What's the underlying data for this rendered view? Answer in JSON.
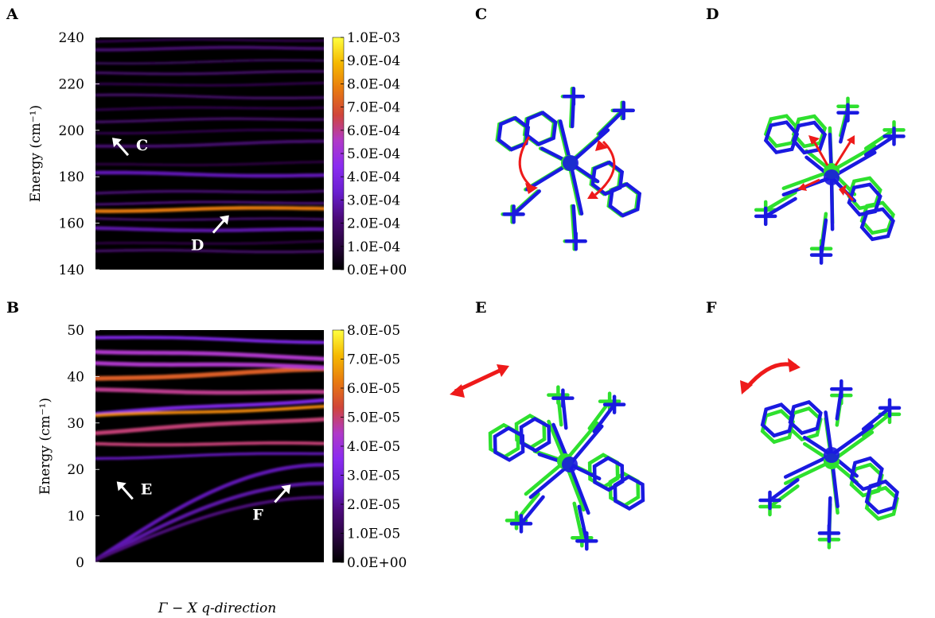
{
  "panel_labels": [
    "A",
    "B",
    "C",
    "D",
    "E",
    "F"
  ],
  "shared_xlabel": "Γ − X q-direction",
  "colormap": [
    "#000000",
    "#2a0540",
    "#4c0a7a",
    "#6a1fd0",
    "#8a2cf0",
    "#b03ac8",
    "#d0453a",
    "#e87a10",
    "#f5b800",
    "#ffff40"
  ],
  "chart_data": [
    {
      "type": "heatmap",
      "panel": "A",
      "ylabel": "Energy (cm⁻¹)",
      "ylim": [
        140,
        240
      ],
      "yticks": [
        "140",
        "160",
        "180",
        "200",
        "220",
        "240"
      ],
      "colorbar": {
        "range": [
          0.0,
          0.001
        ],
        "ticks": [
          "0.0E+00",
          "1.0E-04",
          "2.0E-04",
          "3.0E-04",
          "4.0E-04",
          "5.0E-04",
          "6.0E-04",
          "7.0E-04",
          "8.0E-04",
          "9.0E-04",
          "1.0E-03"
        ]
      },
      "bands": [
        {
          "y0": 148,
          "y1": 148,
          "intensity": 0.18,
          "width": 1.2
        },
        {
          "y0": 151,
          "y1": 152,
          "intensity": 0.12,
          "width": 1.0
        },
        {
          "y0": 157.5,
          "y1": 157.0,
          "intensity": 0.28,
          "width": 1.6
        },
        {
          "y0": 162,
          "y1": 161.5,
          "intensity": 0.2,
          "width": 1.0
        },
        {
          "y0": 165.5,
          "y1": 166.5,
          "intensity": 0.78,
          "width": 1.6
        },
        {
          "y0": 168.5,
          "y1": 169,
          "intensity": 0.22,
          "width": 1.0
        },
        {
          "y0": 173,
          "y1": 174,
          "intensity": 0.2,
          "width": 1.2
        },
        {
          "y0": 181.5,
          "y1": 180.5,
          "intensity": 0.3,
          "width": 1.6
        },
        {
          "y0": 185,
          "y1": 186,
          "intensity": 0.12,
          "width": 1.0
        },
        {
          "y0": 193,
          "y1": 195,
          "intensity": 0.2,
          "width": 1.4
        },
        {
          "y0": 199,
          "y1": 200,
          "intensity": 0.14,
          "width": 1.0
        },
        {
          "y0": 204,
          "y1": 205,
          "intensity": 0.18,
          "width": 1.2
        },
        {
          "y0": 209,
          "y1": 210,
          "intensity": 0.14,
          "width": 1.0
        },
        {
          "y0": 215,
          "y1": 214,
          "intensity": 0.18,
          "width": 1.2
        },
        {
          "y0": 219.5,
          "y1": 220,
          "intensity": 0.14,
          "width": 1.0
        },
        {
          "y0": 224.5,
          "y1": 225,
          "intensity": 0.18,
          "width": 1.2
        },
        {
          "y0": 229,
          "y1": 230,
          "intensity": 0.16,
          "width": 1.0
        },
        {
          "y0": 235,
          "y1": 235.5,
          "intensity": 0.2,
          "width": 1.4
        },
        {
          "y0": 238.5,
          "y1": 239,
          "intensity": 0.14,
          "width": 1.0
        }
      ],
      "annotations": [
        {
          "label": "C",
          "x": 0.08,
          "y": 192
        },
        {
          "label": "D",
          "x": 0.55,
          "y": 160
        }
      ]
    },
    {
      "type": "heatmap",
      "panel": "B",
      "ylabel": "Energy (cm⁻¹)",
      "ylim": [
        0,
        50
      ],
      "yticks": [
        "0",
        "10",
        "20",
        "30",
        "40",
        "50"
      ],
      "colorbar": {
        "range": [
          0.0,
          8e-05
        ],
        "ticks": [
          "0.0E+00",
          "1.0E-05",
          "2.0E-05",
          "3.0E-05",
          "4.0E-05",
          "5.0E-05",
          "6.0E-05",
          "7.0E-05",
          "8.0E-05"
        ]
      },
      "bands": [
        {
          "y0": 0.5,
          "y1": 21,
          "intensity": 0.3,
          "width": 0.8
        },
        {
          "y0": 0.5,
          "y1": 17,
          "intensity": 0.28,
          "width": 0.8
        },
        {
          "y0": 0.5,
          "y1": 14,
          "intensity": 0.22,
          "width": 0.7
        },
        {
          "y0": 25.5,
          "y1": 25.5,
          "intensity": 0.62,
          "width": 0.7
        },
        {
          "y0": 22.5,
          "y1": 23.5,
          "intensity": 0.3,
          "width": 0.6
        },
        {
          "y0": 28,
          "y1": 31,
          "intensity": 0.62,
          "width": 0.9
        },
        {
          "y0": 32,
          "y1": 35,
          "intensity": 0.4,
          "width": 0.8
        },
        {
          "y0": 31.5,
          "y1": 33.5,
          "intensity": 0.8,
          "width": 0.7
        },
        {
          "y0": 37,
          "y1": 36.5,
          "intensity": 0.6,
          "width": 0.9
        },
        {
          "y0": 39.5,
          "y1": 41.5,
          "intensity": 0.72,
          "width": 1.0
        },
        {
          "y0": 43,
          "y1": 42,
          "intensity": 0.55,
          "width": 0.9
        },
        {
          "y0": 45.5,
          "y1": 44,
          "intensity": 0.55,
          "width": 0.9
        },
        {
          "y0": 48.5,
          "y1": 47.5,
          "intensity": 0.4,
          "width": 0.7
        }
      ],
      "annotations": [
        {
          "label": "E",
          "x": 0.1,
          "y": 15
        },
        {
          "label": "F",
          "x": 0.82,
          "y": 15
        }
      ]
    }
  ],
  "molecule_colors": {
    "structure_a": "#2ee02e",
    "structure_b": "#1a1ae0",
    "arrow": "#ee1a1a"
  }
}
